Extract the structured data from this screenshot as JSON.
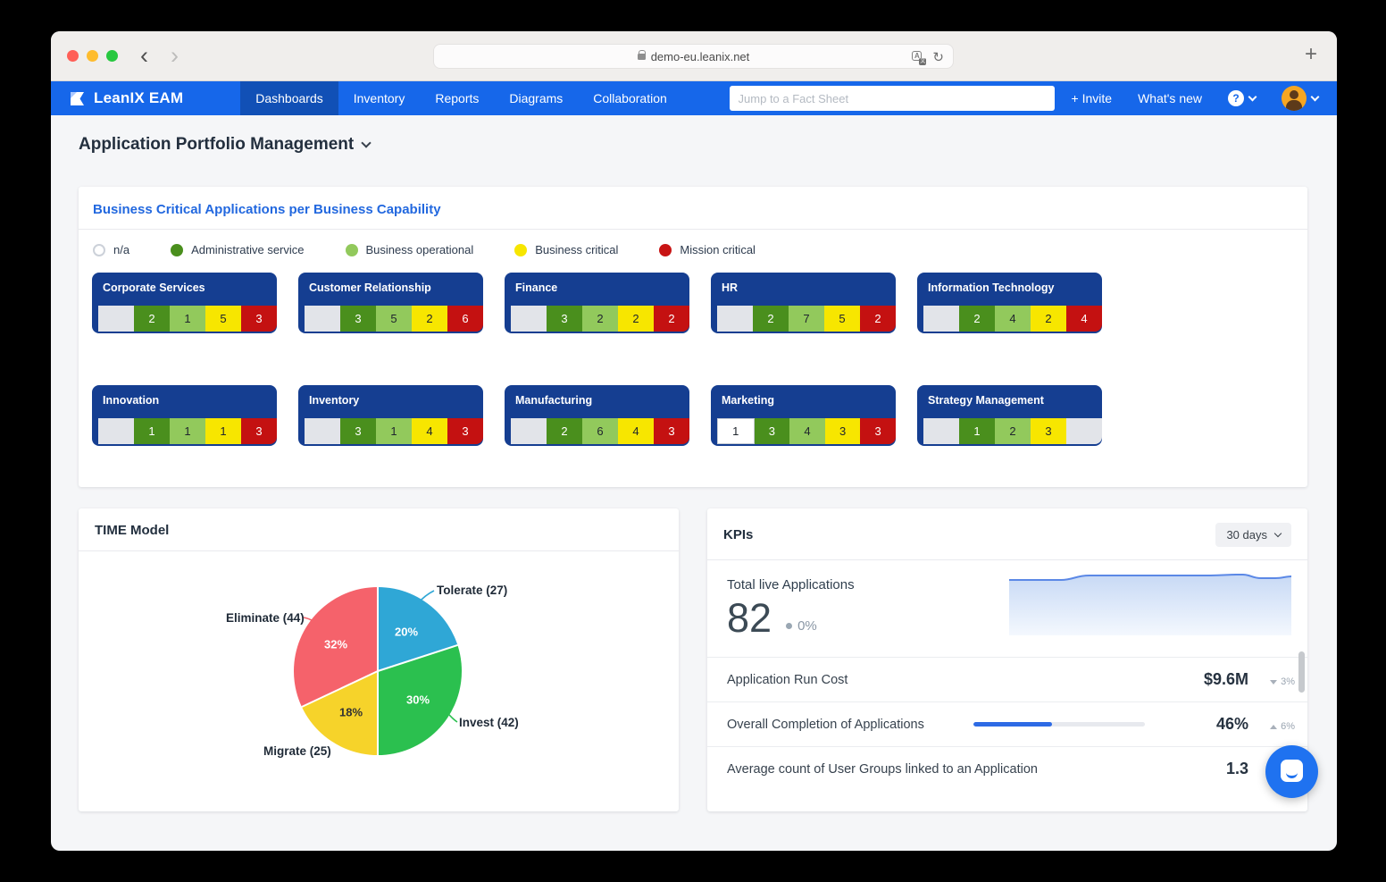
{
  "browser": {
    "url": "demo-eu.leanix.net",
    "back_icon": "‹",
    "forward_icon": "›",
    "reload_icon": "↻",
    "new_tab_icon": "+"
  },
  "nav": {
    "brand": "LeanIX EAM",
    "tabs": [
      {
        "label": "Dashboards",
        "active": true
      },
      {
        "label": "Inventory",
        "active": false
      },
      {
        "label": "Reports",
        "active": false
      },
      {
        "label": "Diagrams",
        "active": false
      },
      {
        "label": "Collaboration",
        "active": false
      }
    ],
    "search_placeholder": "Jump to a Fact Sheet",
    "invite": "+ Invite",
    "whats_new": "What's new",
    "help_glyph": "?"
  },
  "page": {
    "title": "Application Portfolio Management"
  },
  "capability_card": {
    "title": "Business Critical Applications per Business Capability",
    "legend": [
      {
        "label": "n/a",
        "color": "#ffffff"
      },
      {
        "label": "Administrative service",
        "color": "#4a8f1d"
      },
      {
        "label": "Business operational",
        "color": "#92c95c"
      },
      {
        "label": "Business critical",
        "color": "#f7e600"
      },
      {
        "label": "Mission critical",
        "color": "#c81414"
      }
    ],
    "capabilities": [
      {
        "name": "Corporate Services",
        "segments": [
          {
            "value": ""
          },
          {
            "value": 2
          },
          {
            "value": 1
          },
          {
            "value": 5
          },
          {
            "value": 3
          }
        ]
      },
      {
        "name": "Customer Relationship",
        "segments": [
          {
            "value": ""
          },
          {
            "value": 3
          },
          {
            "value": 5
          },
          {
            "value": 2
          },
          {
            "value": 6
          }
        ]
      },
      {
        "name": "Finance",
        "segments": [
          {
            "value": ""
          },
          {
            "value": 3
          },
          {
            "value": 2
          },
          {
            "value": 2
          },
          {
            "value": 2
          }
        ]
      },
      {
        "name": "HR",
        "segments": [
          {
            "value": ""
          },
          {
            "value": 2
          },
          {
            "value": 7
          },
          {
            "value": 5
          },
          {
            "value": 2
          }
        ]
      },
      {
        "name": "Information Technology",
        "segments": [
          {
            "value": ""
          },
          {
            "value": 2
          },
          {
            "value": 4
          },
          {
            "value": 2
          },
          {
            "value": 4
          }
        ]
      },
      {
        "name": "Innovation",
        "segments": [
          {
            "value": ""
          },
          {
            "value": 1
          },
          {
            "value": 1
          },
          {
            "value": 1
          },
          {
            "value": 3
          }
        ]
      },
      {
        "name": "Inventory",
        "segments": [
          {
            "value": ""
          },
          {
            "value": 3
          },
          {
            "value": 1
          },
          {
            "value": 4
          },
          {
            "value": 3
          }
        ]
      },
      {
        "name": "Manufacturing",
        "segments": [
          {
            "value": ""
          },
          {
            "value": 2
          },
          {
            "value": 6
          },
          {
            "value": 4
          },
          {
            "value": 3
          }
        ]
      },
      {
        "name": "Marketing",
        "segments": [
          {
            "value": 1
          },
          {
            "value": 3
          },
          {
            "value": 4
          },
          {
            "value": 3
          },
          {
            "value": 3
          }
        ]
      },
      {
        "name": "Strategy Management",
        "segments": [
          {
            "value": ""
          },
          {
            "value": 1
          },
          {
            "value": 2
          },
          {
            "value": 3
          },
          {
            "value": ""
          }
        ]
      }
    ]
  },
  "time_model": {
    "title": "TIME Model",
    "chart_type": "pie",
    "slices": [
      {
        "label": "Tolerate (27)",
        "value": 27,
        "pct": "20%",
        "color": "#2fa7d6"
      },
      {
        "label": "Invest (42)",
        "value": 42,
        "pct": "30%",
        "color": "#2bc04f"
      },
      {
        "label": "Migrate (25)",
        "value": 25,
        "pct": "18%",
        "color": "#f6d32a"
      },
      {
        "label": "Eliminate (44)",
        "value": 44,
        "pct": "32%",
        "color": "#f5626b"
      }
    ]
  },
  "kpis": {
    "title": "KPIs",
    "period": "30 days",
    "total": {
      "label": "Total live Applications",
      "value": "82",
      "delta": "0%"
    },
    "rows": [
      {
        "label": "Application Run Cost",
        "value": "$9.6M",
        "delta": "3%",
        "trend": "down"
      },
      {
        "label": "Overall Completion of Applications",
        "value": "46%",
        "delta": "6%",
        "trend": "up",
        "progress": 46
      },
      {
        "label": "Average count of User Groups linked to an Application",
        "value": "1.3",
        "delta": "",
        "trend": "down"
      }
    ]
  }
}
